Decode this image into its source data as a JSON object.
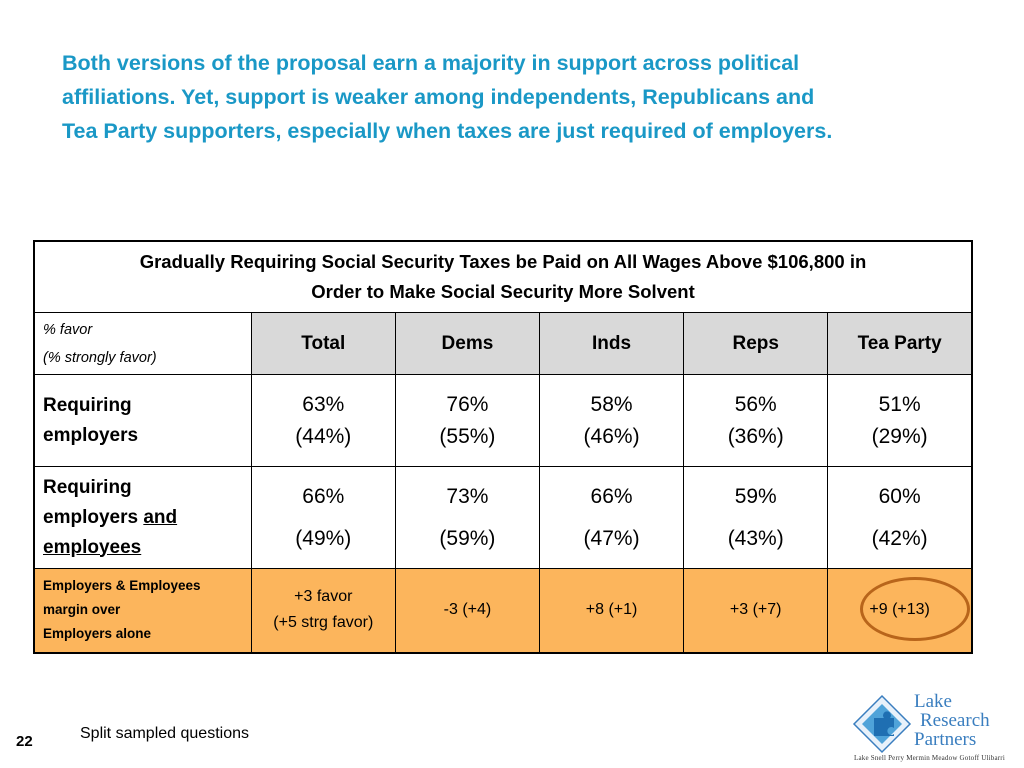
{
  "headline": {
    "line1": "Both versions of the proposal earn a majority in support across political",
    "line2": "affiliations.  Yet, support is weaker among independents, Republicans and",
    "line3": "Tea Party supporters, especially when taxes are just required of employers."
  },
  "table": {
    "title_line1": "Gradually Requiring Social Security Taxes be Paid on All Wages Above $106,800 in",
    "title_line2": "Order to Make Social Security More Solvent",
    "favor_label": "% favor",
    "strong_label": "(% strongly favor)",
    "columns": [
      "Total",
      "Dems",
      "Inds",
      "Reps",
      "Tea Party"
    ],
    "rows": [
      {
        "label_line1": "Requiring",
        "label_line2": "employers",
        "cells": [
          {
            "pct": "63%",
            "strong": "(44%)"
          },
          {
            "pct": "76%",
            "strong": "(55%)"
          },
          {
            "pct": "58%",
            "strong": "(46%)"
          },
          {
            "pct": "56%",
            "strong": "(36%)"
          },
          {
            "pct": "51%",
            "strong": "(29%)"
          }
        ]
      },
      {
        "label_line1": "Requiring",
        "label_line2a": "employers ",
        "label_line2b": "and",
        "label_line3": "employees",
        "cells": [
          {
            "pct": "66%",
            "strong": "(49%)"
          },
          {
            "pct": "73%",
            "strong": "(59%)"
          },
          {
            "pct": "66%",
            "strong": "(47%)"
          },
          {
            "pct": "59%",
            "strong": "(43%)"
          },
          {
            "pct": "60%",
            "strong": "(42%)"
          }
        ]
      }
    ],
    "diff_row": {
      "label_line1": "Employers & Employees",
      "label_line2": "margin over",
      "label_line3": "Employers alone",
      "total_line1": "+3 favor",
      "total_line2": "(+5 strg favor)",
      "cells": [
        "-3 (+4)",
        "+8 (+1)",
        "+3 (+7)",
        "+9 (+13)"
      ]
    }
  },
  "footer": {
    "page_number": "22",
    "note": "Split sampled questions"
  },
  "logo": {
    "line1": "Lake",
    "line2": "Research",
    "line3": "Partners",
    "names": "Lake  Snell  Perry  Mermin  Meadow  Gotoff  Ulibarri"
  },
  "colors": {
    "headline": "#1a98c6",
    "header_gray": "#d9d9d9",
    "diff_row": "#fcb55c",
    "circle": "#b8651b",
    "logo_blue": "#3a7ebf"
  }
}
